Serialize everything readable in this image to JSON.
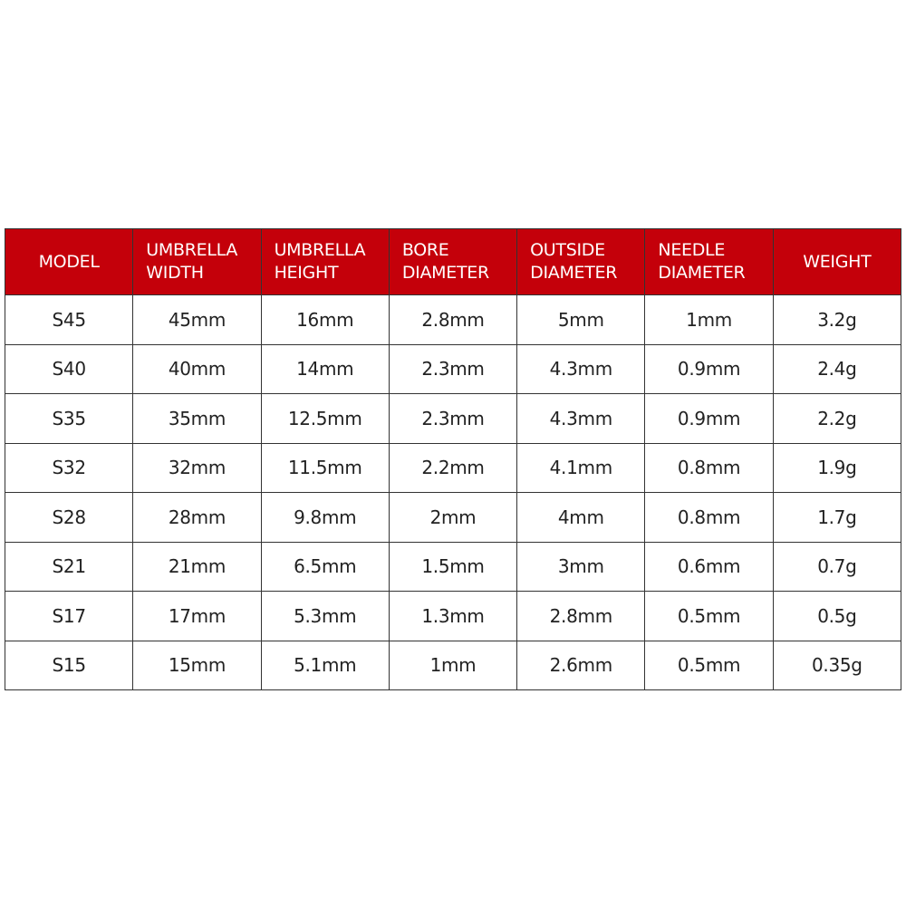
{
  "header_color": "#c4000a",
  "columns": [
    [
      "MODEL"
    ],
    [
      "UMBRELLA",
      "WIDTH"
    ],
    [
      "UMBRELLA",
      "HEIGHT"
    ],
    [
      "BORE",
      "DIAMETER"
    ],
    [
      "OUTSIDE",
      "DIAMETER"
    ],
    [
      "NEEDLE",
      "DIAMETER"
    ],
    [
      "WEIGHT"
    ]
  ],
  "rows": [
    [
      "S45",
      "45mm",
      "16mm",
      "2.8mm",
      "5mm",
      "1mm",
      "3.2g"
    ],
    [
      "S40",
      "40mm",
      "14mm",
      "2.3mm",
      "4.3mm",
      "0.9mm",
      "2.4g"
    ],
    [
      "S35",
      "35mm",
      "12.5mm",
      "2.3mm",
      "4.3mm",
      "0.9mm",
      "2.2g"
    ],
    [
      "S32",
      "32mm",
      "11.5mm",
      "2.2mm",
      "4.1mm",
      "0.8mm",
      "1.9g"
    ],
    [
      "S28",
      "28mm",
      "9.8mm",
      "2mm",
      "4mm",
      "0.8mm",
      "1.7g"
    ],
    [
      "S21",
      "21mm",
      "6.5mm",
      "1.5mm",
      "3mm",
      "0.6mm",
      "0.7g"
    ],
    [
      "S17",
      "17mm",
      "5.3mm",
      "1.3mm",
      "2.8mm",
      "0.5mm",
      "0.5g"
    ],
    [
      "S15",
      "15mm",
      "5.1mm",
      "1mm",
      "2.6mm",
      "0.5mm",
      "0.35g"
    ]
  ]
}
